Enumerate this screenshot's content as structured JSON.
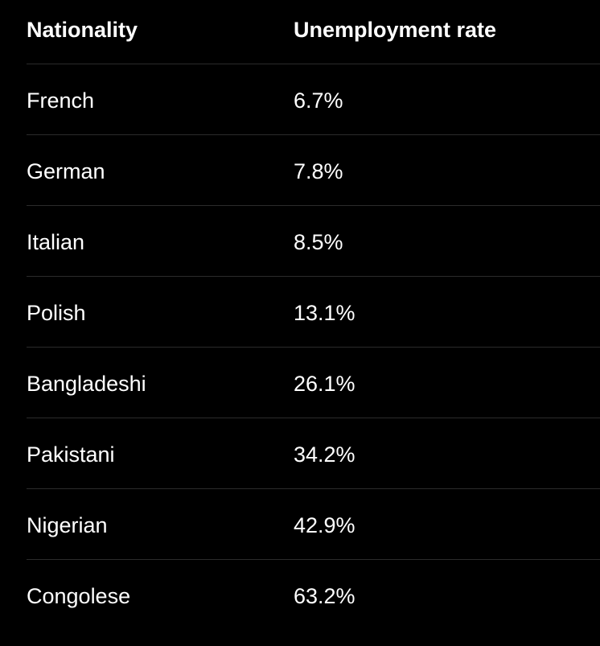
{
  "table": {
    "header": [
      "Nationality",
      "Unemployment rate"
    ],
    "rows": [
      [
        "French",
        "6.7%"
      ],
      [
        "German",
        "7.8%"
      ],
      [
        "Italian",
        "8.5%"
      ],
      [
        "Polish",
        "13.1%"
      ],
      [
        "Bangladeshi",
        "26.1%"
      ],
      [
        "Pakistani",
        "34.2%"
      ],
      [
        "Nigerian",
        "42.9%"
      ],
      [
        "Congolese",
        "63.2%"
      ]
    ]
  }
}
